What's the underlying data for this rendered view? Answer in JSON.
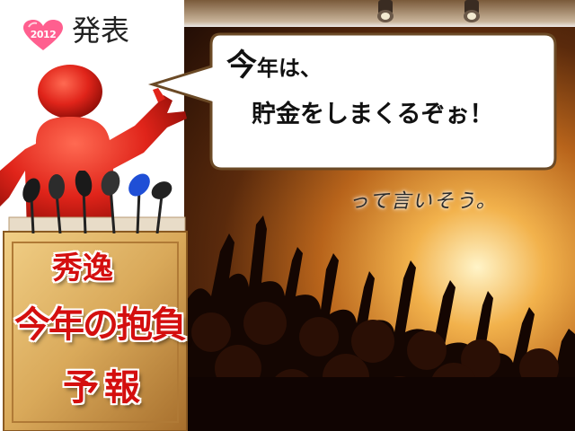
{
  "badge": {
    "year": "2012",
    "icon": "heart-icon",
    "color": "#ff5f8f"
  },
  "heading": "発表",
  "bubble": {
    "line1_first": "今",
    "line1_rest": "年は、",
    "line2": "貯金をしまくるぞぉ！"
  },
  "aside": "って言いそう。",
  "podium": {
    "line1": "秀逸",
    "line2": "今年の抱負",
    "line3": "予報",
    "text_color": "#d40f0f"
  },
  "colors": {
    "figure": "#e0241a",
    "podium": "#d9a95a"
  }
}
